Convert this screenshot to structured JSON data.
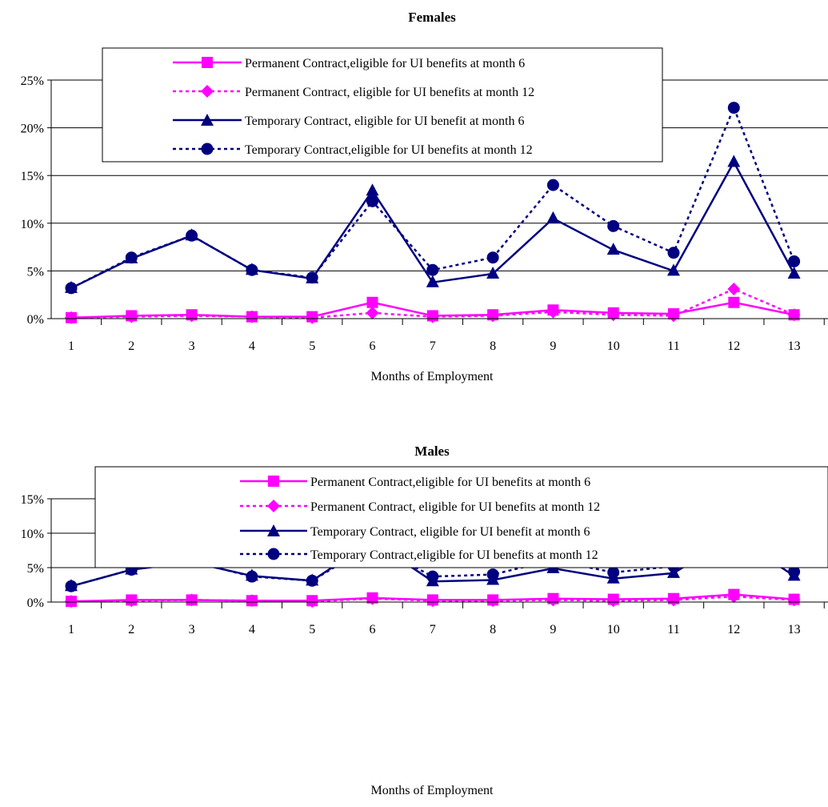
{
  "chart_data": [
    {
      "type": "line",
      "title": "Females",
      "xlabel": "Months of Employment",
      "ylabel": "",
      "categories": [
        "1",
        "2",
        "3",
        "4",
        "5",
        "6",
        "7",
        "8",
        "9",
        "10",
        "11",
        "12",
        "13"
      ],
      "y_ticks": [
        "0%",
        "5%",
        "10%",
        "15%",
        "20%",
        "25%"
      ],
      "ylim": [
        0,
        25
      ],
      "grid": "horizontal",
      "legend_position": "top-center",
      "series": [
        {
          "name": "Permanent Contract,eligible for UI benefits at month 6",
          "color": "#ff00ff",
          "marker": "square",
          "dash": "solid",
          "values": [
            0.1,
            0.3,
            0.4,
            0.2,
            0.2,
            1.7,
            0.3,
            0.4,
            0.9,
            0.6,
            0.5,
            1.7,
            0.4
          ]
        },
        {
          "name": "Permanent Contract, eligible for UI benefits at month 12",
          "color": "#ff00ff",
          "marker": "diamond",
          "dash": "dotted",
          "values": [
            0.1,
            0.2,
            0.3,
            0.2,
            0.1,
            0.6,
            0.2,
            0.3,
            0.7,
            0.4,
            0.3,
            3.1,
            0.4
          ]
        },
        {
          "name": "Temporary Contract, eligible for UI benefit at month 6",
          "color": "#000080",
          "marker": "triangle",
          "dash": "solid",
          "values": [
            3.2,
            6.3,
            8.7,
            5.1,
            4.2,
            13.4,
            3.8,
            4.7,
            10.5,
            7.2,
            5.0,
            16.4,
            4.7
          ]
        },
        {
          "name": "Temporary Contract,eligible for UI benefits at month 12",
          "color": "#000080",
          "marker": "circle",
          "dash": "dotted",
          "values": [
            3.2,
            6.4,
            8.7,
            5.1,
            4.3,
            12.3,
            5.1,
            6.4,
            14.0,
            9.7,
            6.9,
            22.1,
            6.0
          ]
        }
      ]
    },
    {
      "type": "line",
      "title": "Males",
      "xlabel": "Months of Employment",
      "ylabel": "",
      "categories": [
        "1",
        "2",
        "3",
        "4",
        "5",
        "6",
        "7",
        "8",
        "9",
        "10",
        "11",
        "12",
        "13"
      ],
      "y_ticks": [
        "0%",
        "5%",
        "10%",
        "15%"
      ],
      "ylim": [
        0,
        15
      ],
      "grid": "horizontal",
      "legend_position": "top-right",
      "series": [
        {
          "name": "Permanent Contract,eligible for UI benefits at month 6",
          "color": "#ff00ff",
          "marker": "square",
          "dash": "solid",
          "values": [
            0.1,
            0.3,
            0.3,
            0.2,
            0.2,
            0.6,
            0.3,
            0.3,
            0.5,
            0.4,
            0.5,
            1.1,
            0.4
          ]
        },
        {
          "name": "Permanent Contract, eligible for UI benefits at month 12",
          "color": "#ff00ff",
          "marker": "diamond",
          "dash": "dotted",
          "values": [
            0.1,
            0.2,
            0.3,
            0.2,
            0.1,
            0.5,
            0.2,
            0.2,
            0.3,
            0.2,
            0.3,
            0.8,
            0.3
          ]
        },
        {
          "name": "Temporary Contract, eligible for UI benefit at month 6",
          "color": "#000080",
          "marker": "triangle",
          "dash": "solid",
          "values": [
            2.3,
            4.7,
            5.8,
            3.8,
            3.1,
            8.9,
            3.0,
            3.2,
            4.9,
            3.4,
            4.2,
            9.6,
            3.8
          ]
        },
        {
          "name": "Temporary Contract,eligible for UI benefits at month 12",
          "color": "#000080",
          "marker": "circle",
          "dash": "dotted",
          "values": [
            2.3,
            4.7,
            5.9,
            3.7,
            3.1,
            8.4,
            3.7,
            4.0,
            6.1,
            4.3,
            5.2,
            11.2,
            4.4
          ]
        }
      ]
    }
  ]
}
